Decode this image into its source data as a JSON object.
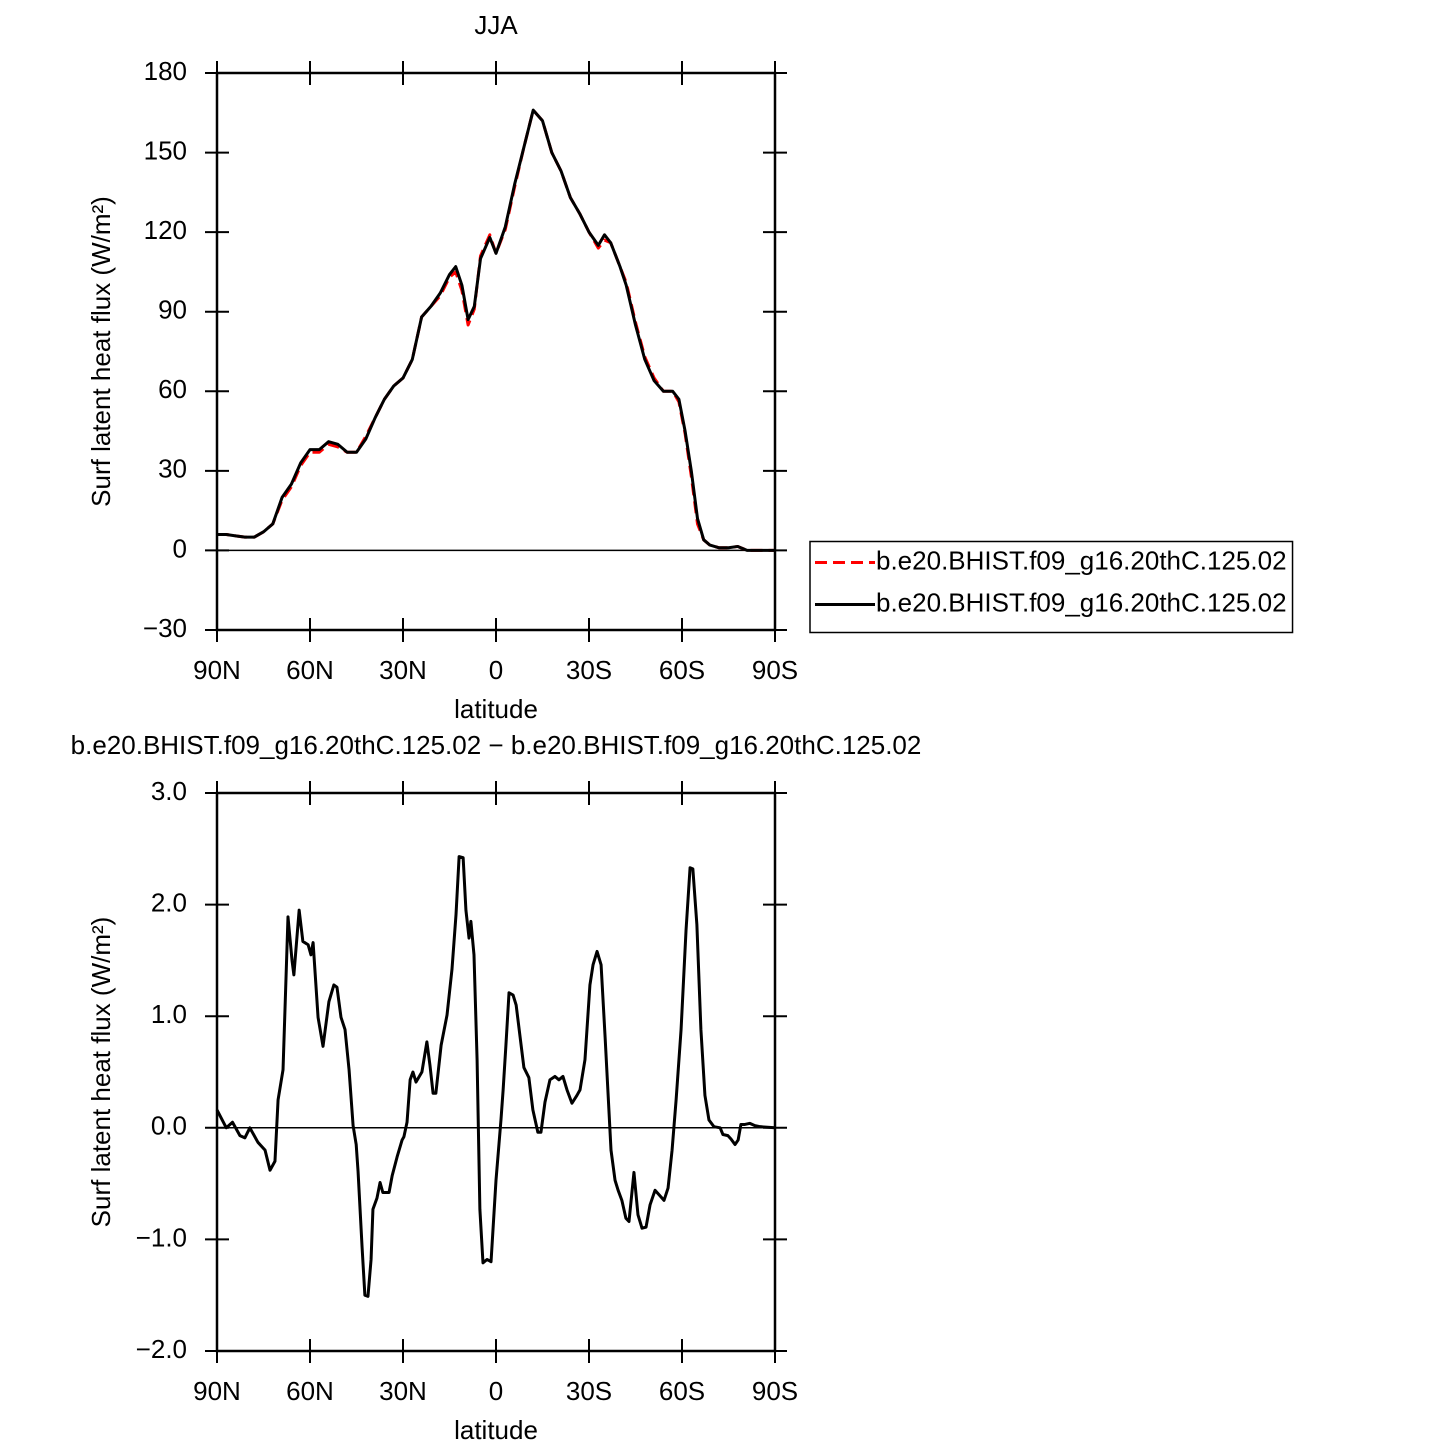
{
  "chart_data": [
    {
      "type": "line",
      "title": "JJA",
      "ylabel": "Surf latent heat flux (W/m²)",
      "xlabel": "latitude",
      "x": [
        90,
        87,
        84,
        81,
        78,
        75,
        72,
        69,
        66,
        63,
        60,
        57,
        54,
        51,
        48,
        45,
        42,
        39,
        36,
        33,
        30,
        27,
        24,
        21,
        18,
        15,
        13,
        11,
        9,
        7,
        5,
        2,
        0,
        -3,
        -6,
        -9,
        -12,
        -15,
        -18,
        -21,
        -24,
        -27,
        -30,
        -33,
        -35,
        -37,
        -40,
        -42,
        -45,
        -48,
        -51,
        -54,
        -57,
        -59,
        -61,
        -63,
        -65,
        -67,
        -69,
        -72,
        -75,
        -78,
        -81,
        -84,
        -87,
        -90
      ],
      "series": [
        {
          "name": "b.e20.BHIST.f09_g16.20thC.125.02",
          "color": "#ff0000",
          "line_style": "dashed",
          "values": [
            6,
            6,
            5.5,
            5,
            5,
            7,
            10,
            19,
            24,
            32,
            37,
            37,
            40,
            39,
            37,
            37,
            43,
            50,
            57,
            62,
            65,
            72,
            88,
            92,
            96,
            103,
            105,
            98,
            85,
            91,
            111,
            119,
            112,
            121,
            137,
            152,
            166,
            162,
            150,
            143,
            133,
            127,
            120,
            114,
            117,
            116,
            107,
            101,
            86,
            73,
            65,
            60,
            60,
            56,
            44,
            28,
            10,
            4,
            2,
            1,
            1,
            1.5,
            0,
            0,
            0,
            0
          ]
        },
        {
          "name": "b.e20.BHIST.f09_g16.20thC.125.02",
          "color": "#000000",
          "line_style": "solid",
          "values": [
            6,
            6,
            5.5,
            5,
            5,
            7,
            10,
            20,
            25,
            33,
            38,
            38,
            41,
            40,
            37,
            37,
            42,
            50,
            57,
            62,
            65,
            72,
            88,
            92,
            97,
            104,
            107,
            100,
            87,
            92,
            110,
            118,
            112,
            122,
            138,
            152,
            166,
            162,
            150,
            143,
            133,
            127,
            120,
            115,
            119,
            116,
            107,
            100,
            85,
            72,
            64,
            60,
            60,
            57,
            45,
            30,
            12,
            4,
            2,
            1,
            1,
            1.5,
            0,
            0,
            0,
            0
          ]
        }
      ],
      "xlim": [
        90,
        -90
      ],
      "xticks": [
        {
          "value": 90,
          "label": "90N"
        },
        {
          "value": 60,
          "label": "60N"
        },
        {
          "value": 30,
          "label": "30N"
        },
        0,
        {
          "value": -30,
          "label": "30S"
        },
        {
          "value": -60,
          "label": "60S"
        },
        {
          "value": -90,
          "label": "90S"
        }
      ],
      "ylim": [
        -30,
        180
      ],
      "yticks": [
        {
          "value": -30,
          "label": "−30"
        },
        0,
        30,
        60,
        90,
        120,
        150,
        180
      ],
      "legend": "right"
    },
    {
      "type": "line",
      "title": "b.e20.BHIST.f09_g16.20thC.125.02 − b.e20.BHIST.f09_g16.20thC.125.02",
      "ylabel": "Surf latent heat flux (W/m²)",
      "xlabel": "latitude",
      "x": [
        90,
        87,
        85,
        82.6,
        81,
        79.4,
        76.8,
        74.5,
        72.9,
        71.3,
        70.3,
        68.7,
        67.1,
        65.8,
        65.2,
        63.5,
        62.3,
        60.6,
        59.7,
        59,
        57.4,
        55.8,
        53.9,
        52.3,
        51.3,
        50,
        48.7,
        47.4,
        46.1,
        45.1,
        44.5,
        43.2,
        42.3,
        41.3,
        40.3,
        39.7,
        38.4,
        37.4,
        36.5,
        34.5,
        33.5,
        31.9,
        30.3,
        29.7,
        28.7,
        27.7,
        26.8,
        25.8,
        23.9,
        22.3,
        21.3,
        20.3,
        19.4,
        17.7,
        15.8,
        14.2,
        12.9,
        11.9,
        10.6,
        9.7,
        8.7,
        8.1,
        7.1,
        6.1,
        5.2,
        4.2,
        2.9,
        1.6,
        0,
        -1.6,
        -2.3,
        -3.2,
        -4.2,
        -5.5,
        -6.5,
        -7.7,
        -9,
        -10.6,
        -11.9,
        -13.5,
        -14.5,
        -15.8,
        -17.4,
        -19,
        -20.3,
        -21.6,
        -22.9,
        -24.5,
        -26.1,
        -27.1,
        -28.7,
        -30.3,
        -31.3,
        -32.6,
        -33.9,
        -35.2,
        -37.1,
        -38.4,
        -39.4,
        -40.6,
        -41.9,
        -42.9,
        -44.5,
        -45.8,
        -47.1,
        -48.4,
        -49.7,
        -51.3,
        -52.6,
        -54.2,
        -55.5,
        -56.8,
        -58.1,
        -59.7,
        -61.3,
        -62.6,
        -63.5,
        -64.8,
        -66.1,
        -67.4,
        -68.7,
        -70.3,
        -72.3,
        -73.2,
        -74.8,
        -75.8,
        -77.1,
        -78.1,
        -79,
        -80.3,
        -81.9,
        -83.5,
        -85.2,
        -90
      ],
      "values": [
        0.16,
        0.0,
        0.05,
        -0.07,
        -0.09,
        0.0,
        -0.13,
        -0.2,
        -0.38,
        -0.3,
        0.25,
        0.52,
        1.89,
        1.5,
        1.37,
        1.95,
        1.67,
        1.64,
        1.55,
        1.66,
        0.99,
        0.73,
        1.13,
        1.28,
        1.26,
        0.99,
        0.88,
        0.52,
        0.02,
        -0.15,
        -0.39,
        -1.07,
        -1.5,
        -1.51,
        -1.18,
        -0.73,
        -0.63,
        -0.49,
        -0.58,
        -0.58,
        -0.43,
        -0.26,
        -0.11,
        -0.08,
        0.05,
        0.43,
        0.5,
        0.41,
        0.5,
        0.77,
        0.56,
        0.31,
        0.31,
        0.74,
        1.01,
        1.42,
        1.91,
        2.43,
        2.42,
        1.95,
        1.7,
        1.85,
        1.55,
        0.61,
        -0.73,
        -1.21,
        -1.18,
        -1.2,
        -0.47,
        0.07,
        0.34,
        0.74,
        1.21,
        1.19,
        1.1,
        0.83,
        0.54,
        0.45,
        0.16,
        -0.04,
        -0.04,
        0.23,
        0.43,
        0.46,
        0.43,
        0.46,
        0.34,
        0.22,
        0.29,
        0.34,
        0.61,
        1.28,
        1.46,
        1.58,
        1.46,
        0.81,
        -0.2,
        -0.47,
        -0.56,
        -0.65,
        -0.81,
        -0.84,
        -0.4,
        -0.78,
        -0.9,
        -0.89,
        -0.69,
        -0.56,
        -0.6,
        -0.65,
        -0.54,
        -0.2,
        0.25,
        0.88,
        1.77,
        2.33,
        2.32,
        1.82,
        0.88,
        0.29,
        0.07,
        0.01,
        0.0,
        -0.06,
        -0.07,
        -0.1,
        -0.15,
        -0.11,
        0.03,
        0.03,
        0.04,
        0.02,
        0.01,
        0.0
      ],
      "color": "#000000",
      "xlim": [
        90,
        -90
      ],
      "xticks": [
        {
          "value": 90,
          "label": "90N"
        },
        {
          "value": 60,
          "label": "60N"
        },
        {
          "value": 30,
          "label": "30N"
        },
        0,
        {
          "value": -30,
          "label": "30S"
        },
        {
          "value": -60,
          "label": "60S"
        },
        {
          "value": -90,
          "label": "90S"
        }
      ],
      "ylim": [
        -2,
        3
      ],
      "yticks": [
        {
          "value": -2,
          "label": "−2.0"
        },
        {
          "value": -1,
          "label": "−1.0"
        },
        {
          "value": 0,
          "label": "0.0"
        },
        {
          "value": 1,
          "label": "1.0"
        },
        {
          "value": 2,
          "label": "2.0"
        },
        {
          "value": 3,
          "label": "3.0"
        }
      ]
    }
  ]
}
